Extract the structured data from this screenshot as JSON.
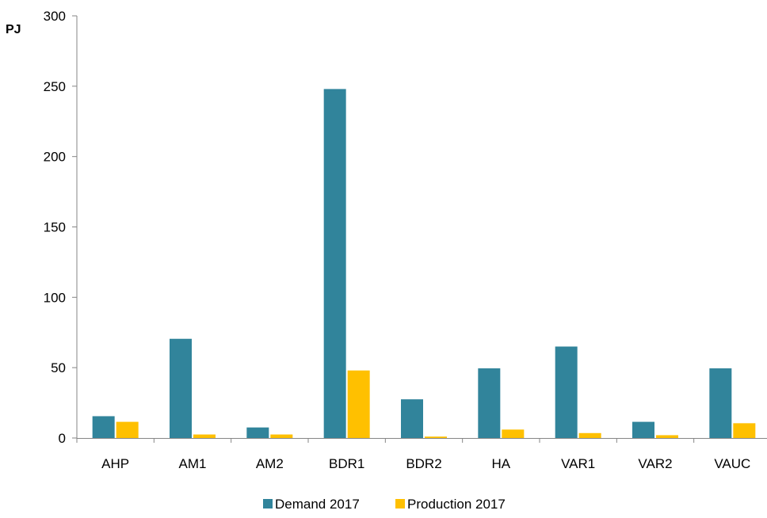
{
  "chart_data": {
    "type": "bar",
    "title": "",
    "xlabel": "",
    "ylabel": "PJ",
    "categories": [
      "AHP",
      "AM1",
      "AM2",
      "BDR1",
      "BDR2",
      "HA",
      "VAR1",
      "VAR2",
      "VAUC"
    ],
    "series": [
      {
        "name": "Demand 2017",
        "color": "#31849b",
        "values": [
          15.5,
          70.5,
          7.5,
          248,
          27.5,
          49.5,
          65,
          11.5,
          49.5
        ]
      },
      {
        "name": "Production 2017",
        "color": "#ffc000",
        "values": [
          11.5,
          2.5,
          2.5,
          48,
          1,
          6,
          3.5,
          2,
          10.5
        ]
      }
    ],
    "ylim": [
      0,
      300
    ],
    "yticks": [
      "0",
      "50",
      "100",
      "150",
      "200",
      "250",
      "300"
    ],
    "grid": false,
    "legend_position": "bottom"
  }
}
